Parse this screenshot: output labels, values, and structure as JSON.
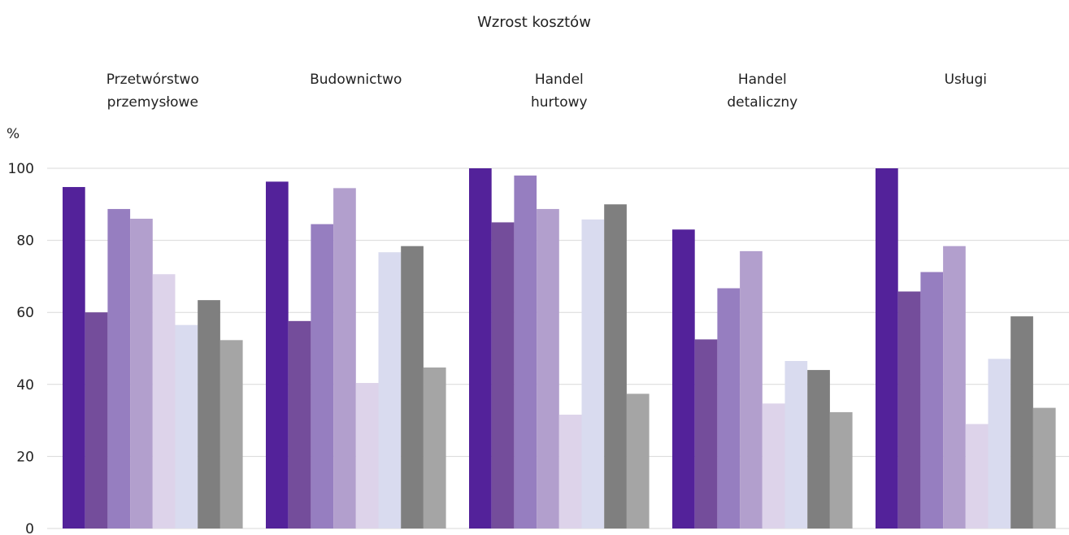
{
  "chart_data": {
    "type": "bar",
    "title": "Wzrost kosztów",
    "ylabel": "%",
    "ylim": [
      0,
      100
    ],
    "yticks": [
      0,
      20,
      40,
      60,
      80,
      100
    ],
    "grid": true,
    "categories": [
      [
        "Przetwórstwo",
        "przemysłowe"
      ],
      [
        "Budownictwo"
      ],
      [
        "Handel",
        "hurtowy"
      ],
      [
        "Handel",
        "detaliczny"
      ],
      [
        "Usługi"
      ]
    ],
    "series": [
      {
        "color": "#53229a",
        "values": [
          94.8,
          96.3,
          100,
          83.0,
          100
        ]
      },
      {
        "color": "#744d9b",
        "values": [
          60.0,
          57.6,
          85.0,
          52.5,
          65.8
        ]
      },
      {
        "color": "#967ec0",
        "values": [
          88.7,
          84.5,
          98.0,
          66.7,
          71.2
        ]
      },
      {
        "color": "#b29fcd",
        "values": [
          86.0,
          94.5,
          88.7,
          77.0,
          78.4
        ]
      },
      {
        "color": "#ddd3ea",
        "values": [
          70.6,
          40.4,
          31.6,
          34.7,
          29.0
        ]
      },
      {
        "color": "#d9dbef",
        "values": [
          56.5,
          76.7,
          85.8,
          46.5,
          47.1
        ]
      },
      {
        "color": "#7f7f7f",
        "values": [
          63.4,
          78.4,
          90.0,
          44.0,
          58.9
        ]
      },
      {
        "color": "#a5a5a5",
        "values": [
          52.3,
          44.7,
          37.4,
          32.3,
          33.5
        ]
      }
    ]
  }
}
